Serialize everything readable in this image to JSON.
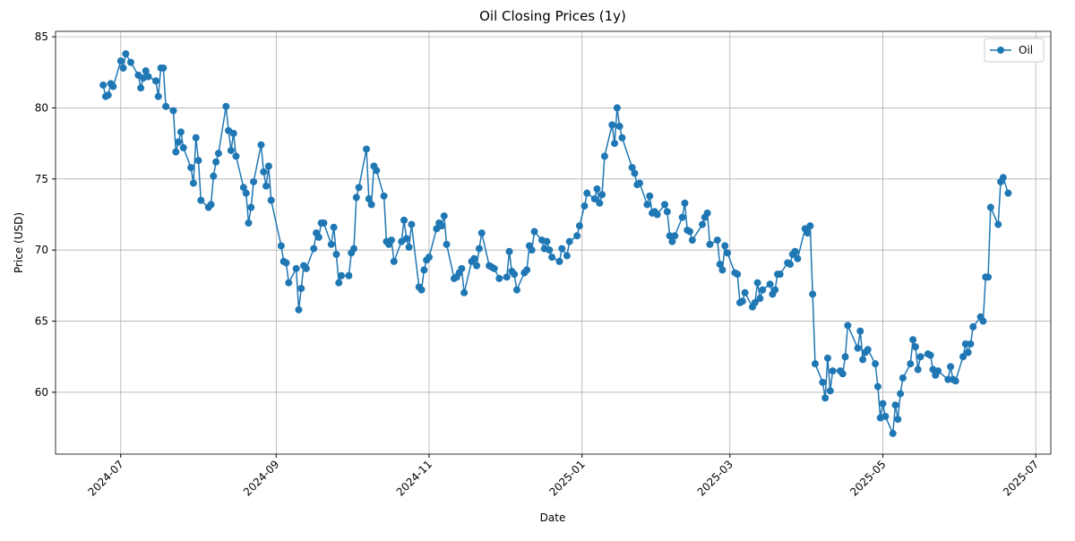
{
  "chart_data": {
    "type": "line",
    "title": "Oil Closing Prices (1y)",
    "x_label": "Date",
    "y_label": "Price (USD)",
    "x": [
      "2024-06-24",
      "2024-06-25",
      "2024-06-26",
      "2024-06-27",
      "2024-06-28",
      "2024-07-01",
      "2024-07-02",
      "2024-07-03",
      "2024-07-05",
      "2024-07-08",
      "2024-07-09",
      "2024-07-10",
      "2024-07-11",
      "2024-07-12",
      "2024-07-15",
      "2024-07-16",
      "2024-07-17",
      "2024-07-18",
      "2024-07-19",
      "2024-07-22",
      "2024-07-23",
      "2024-07-24",
      "2024-07-25",
      "2024-07-26",
      "2024-07-29",
      "2024-07-30",
      "2024-07-31",
      "2024-08-01",
      "2024-08-02",
      "2024-08-05",
      "2024-08-06",
      "2024-08-07",
      "2024-08-08",
      "2024-08-09",
      "2024-08-12",
      "2024-08-13",
      "2024-08-14",
      "2024-08-15",
      "2024-08-16",
      "2024-08-19",
      "2024-08-20",
      "2024-08-21",
      "2024-08-22",
      "2024-08-23",
      "2024-08-26",
      "2024-08-27",
      "2024-08-28",
      "2024-08-29",
      "2024-08-30",
      "2024-09-03",
      "2024-09-04",
      "2024-09-05",
      "2024-09-06",
      "2024-09-09",
      "2024-09-10",
      "2024-09-11",
      "2024-09-12",
      "2024-09-13",
      "2024-09-16",
      "2024-09-17",
      "2024-09-18",
      "2024-09-19",
      "2024-09-20",
      "2024-09-23",
      "2024-09-24",
      "2024-09-25",
      "2024-09-26",
      "2024-09-27",
      "2024-09-30",
      "2024-10-01",
      "2024-10-02",
      "2024-10-03",
      "2024-10-04",
      "2024-10-07",
      "2024-10-08",
      "2024-10-09",
      "2024-10-10",
      "2024-10-11",
      "2024-10-14",
      "2024-10-15",
      "2024-10-16",
      "2024-10-17",
      "2024-10-18",
      "2024-10-21",
      "2024-10-22",
      "2024-10-23",
      "2024-10-24",
      "2024-10-25",
      "2024-10-28",
      "2024-10-29",
      "2024-10-30",
      "2024-10-31",
      "2024-11-01",
      "2024-11-04",
      "2024-11-05",
      "2024-11-06",
      "2024-11-07",
      "2024-11-08",
      "2024-11-11",
      "2024-11-12",
      "2024-11-13",
      "2024-11-14",
      "2024-11-15",
      "2024-11-18",
      "2024-11-19",
      "2024-11-20",
      "2024-11-21",
      "2024-11-22",
      "2024-11-25",
      "2024-11-26",
      "2024-11-27",
      "2024-11-29",
      "2024-12-02",
      "2024-12-03",
      "2024-12-04",
      "2024-12-05",
      "2024-12-06",
      "2024-12-09",
      "2024-12-10",
      "2024-12-11",
      "2024-12-12",
      "2024-12-13",
      "2024-12-16",
      "2024-12-17",
      "2024-12-18",
      "2024-12-19",
      "2024-12-20",
      "2024-12-23",
      "2024-12-24",
      "2024-12-26",
      "2024-12-27",
      "2024-12-30",
      "2024-12-31",
      "2025-01-02",
      "2025-01-03",
      "2025-01-06",
      "2025-01-07",
      "2025-01-08",
      "2025-01-09",
      "2025-01-10",
      "2025-01-13",
      "2025-01-14",
      "2025-01-15",
      "2025-01-16",
      "2025-01-17",
      "2025-01-21",
      "2025-01-22",
      "2025-01-23",
      "2025-01-24",
      "2025-01-27",
      "2025-01-28",
      "2025-01-29",
      "2025-01-30",
      "2025-01-31",
      "2025-02-03",
      "2025-02-04",
      "2025-02-05",
      "2025-02-06",
      "2025-02-07",
      "2025-02-10",
      "2025-02-11",
      "2025-02-12",
      "2025-02-13",
      "2025-02-14",
      "2025-02-18",
      "2025-02-19",
      "2025-02-20",
      "2025-02-21",
      "2025-02-24",
      "2025-02-25",
      "2025-02-26",
      "2025-02-27",
      "2025-02-28",
      "2025-03-03",
      "2025-03-04",
      "2025-03-05",
      "2025-03-06",
      "2025-03-07",
      "2025-03-10",
      "2025-03-11",
      "2025-03-12",
      "2025-03-13",
      "2025-03-14",
      "2025-03-17",
      "2025-03-18",
      "2025-03-19",
      "2025-03-20",
      "2025-03-21",
      "2025-03-24",
      "2025-03-25",
      "2025-03-26",
      "2025-03-27",
      "2025-03-28",
      "2025-03-31",
      "2025-04-01",
      "2025-04-02",
      "2025-04-03",
      "2025-04-04",
      "2025-04-07",
      "2025-04-08",
      "2025-04-09",
      "2025-04-10",
      "2025-04-11",
      "2025-04-14",
      "2025-04-15",
      "2025-04-16",
      "2025-04-17",
      "2025-04-21",
      "2025-04-22",
      "2025-04-23",
      "2025-04-24",
      "2025-04-25",
      "2025-04-28",
      "2025-04-29",
      "2025-04-30",
      "2025-05-01",
      "2025-05-02",
      "2025-05-05",
      "2025-05-06",
      "2025-05-07",
      "2025-05-08",
      "2025-05-09",
      "2025-05-12",
      "2025-05-13",
      "2025-05-14",
      "2025-05-15",
      "2025-05-16",
      "2025-05-19",
      "2025-05-20",
      "2025-05-21",
      "2025-05-22",
      "2025-05-23",
      "2025-05-27",
      "2025-05-28",
      "2025-05-29",
      "2025-05-30",
      "2025-06-02",
      "2025-06-03",
      "2025-06-04",
      "2025-06-05",
      "2025-06-06",
      "2025-06-09",
      "2025-06-10",
      "2025-06-11",
      "2025-06-12",
      "2025-06-13",
      "2025-06-16",
      "2025-06-17",
      "2025-06-18",
      "2025-06-20"
    ],
    "series": [
      {
        "name": "Oil",
        "color": "#1f77b4",
        "values": [
          81.6,
          80.8,
          80.9,
          81.7,
          81.5,
          83.3,
          82.8,
          83.8,
          83.2,
          82.3,
          81.4,
          82.1,
          82.6,
          82.2,
          81.9,
          80.8,
          82.8,
          82.8,
          80.1,
          79.8,
          76.9,
          77.6,
          78.3,
          77.2,
          75.8,
          74.7,
          77.9,
          76.3,
          73.5,
          73.0,
          73.2,
          75.2,
          76.2,
          76.8,
          80.1,
          78.4,
          77.0,
          78.2,
          76.6,
          74.4,
          74.0,
          71.9,
          73.0,
          74.8,
          77.4,
          75.5,
          74.5,
          75.9,
          73.5,
          70.3,
          69.2,
          69.1,
          67.7,
          68.7,
          65.8,
          67.3,
          68.9,
          68.7,
          70.1,
          71.2,
          70.9,
          71.9,
          71.9,
          70.4,
          71.6,
          69.7,
          67.7,
          68.2,
          68.2,
          69.8,
          70.1,
          73.7,
          74.4,
          77.1,
          73.6,
          73.2,
          75.9,
          75.6,
          73.8,
          70.6,
          70.4,
          70.7,
          69.2,
          70.6,
          72.1,
          70.8,
          70.2,
          71.8,
          67.4,
          67.2,
          68.6,
          69.3,
          69.5,
          71.5,
          71.9,
          71.7,
          72.4,
          70.4,
          68.0,
          68.1,
          68.4,
          68.7,
          67.0,
          69.2,
          69.4,
          68.9,
          70.1,
          71.2,
          68.9,
          68.8,
          68.7,
          68.0,
          68.1,
          69.9,
          68.5,
          68.3,
          67.2,
          68.4,
          68.6,
          70.3,
          70.0,
          71.3,
          70.7,
          70.1,
          70.6,
          70.0,
          69.5,
          69.2,
          70.1,
          69.6,
          70.6,
          71.0,
          71.7,
          73.1,
          74.0,
          73.6,
          74.3,
          73.3,
          73.9,
          76.6,
          78.8,
          77.5,
          80.0,
          78.7,
          77.9,
          75.8,
          75.4,
          74.6,
          74.7,
          73.2,
          73.8,
          72.6,
          72.7,
          72.5,
          73.2,
          72.7,
          71.0,
          70.6,
          71.0,
          72.3,
          73.3,
          71.4,
          71.3,
          70.7,
          71.8,
          72.3,
          72.6,
          70.4,
          70.7,
          69.0,
          68.6,
          70.3,
          69.8,
          68.4,
          68.3,
          66.3,
          66.4,
          67.0,
          66.0,
          66.3,
          67.7,
          66.6,
          67.2,
          67.6,
          66.9,
          67.2,
          68.3,
          68.3,
          69.1,
          69.0,
          69.7,
          69.9,
          69.4,
          71.5,
          71.2,
          71.7,
          66.9,
          62.0,
          60.7,
          59.6,
          62.4,
          60.1,
          61.5,
          61.5,
          61.3,
          62.5,
          64.7,
          63.1,
          64.3,
          62.3,
          62.8,
          63.0,
          62.0,
          60.4,
          58.2,
          59.2,
          58.3,
          57.1,
          59.1,
          58.1,
          59.9,
          61.0,
          62.0,
          63.7,
          63.2,
          61.6,
          62.5,
          62.7,
          62.6,
          61.6,
          61.2,
          61.5,
          60.9,
          61.8,
          60.9,
          60.8,
          62.5,
          63.4,
          62.8,
          63.4,
          64.6,
          65.3,
          65.0,
          68.1,
          68.1,
          73.0,
          71.8,
          74.8,
          75.1,
          74.0
        ]
      }
    ],
    "xlim": [
      "2024-06-05",
      "2025-07-07"
    ],
    "xticks": [
      "2024-07",
      "2024-09",
      "2024-11",
      "2025-01",
      "2025-03",
      "2025-05",
      "2025-07"
    ],
    "ylim": [
      55.65,
      85.38
    ],
    "yticks": [
      60,
      65,
      70,
      75,
      80,
      85
    ],
    "grid": true,
    "legend": "upper right"
  }
}
